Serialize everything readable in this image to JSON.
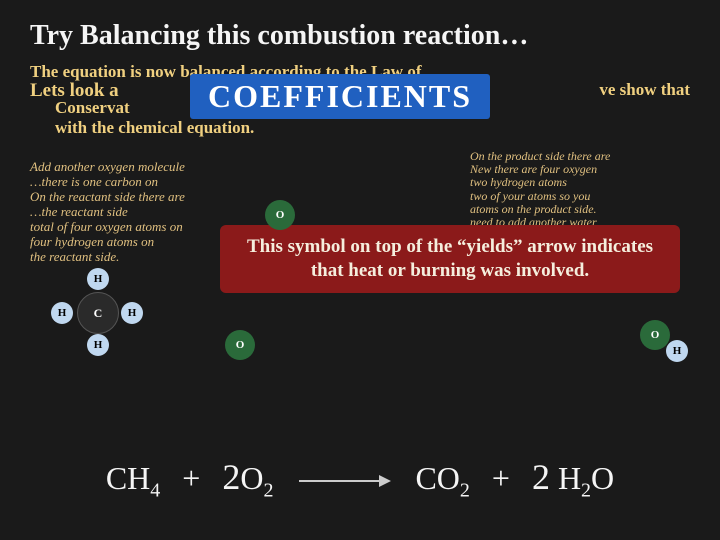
{
  "title": "Try Balancing this combustion reaction…",
  "overlay": {
    "law_line": "The equation is now balanced according to the Law of",
    "lets_look": "Lets look a",
    "conservation": "Conservat",
    "show_that": "ve show that",
    "with_chem": "with the chemical equation.",
    "coeff_label": "COEFFICIENTS"
  },
  "left_para": "Add another oxygen molecule<br>…there is one carbon on<br>On the reactant side there are<br>…the reactant side<br>total of four oxygen atoms on<br>four hydrogen atoms on<br>the reactant side.",
  "right_para": "On the product side there are<br>New there are four oxygen<br>two hydrogen atoms<br>two of your atoms so you<br>atoms on the product side.<br>need to add another water<br>molecule",
  "red_box": "This symbol on top of the “yields” arrow indicates that heat or burning was involved.",
  "atoms": {
    "H": "H",
    "C": "C",
    "O": "O"
  },
  "equation": {
    "ch4": "CH",
    "ch4_sub": "4",
    "plus": "+",
    "coef2a": "2",
    "o2": "O",
    "o2_sub": "2",
    "co2": "CO",
    "co2_sub": "2",
    "coef2b": "2",
    "h2o_h": "H",
    "h2o_sub": "2",
    "h2o_o": "O"
  },
  "colors": {
    "bg": "#1a1a1a",
    "title": "#f5f5f5",
    "gold": "#f0d080",
    "coeff_bg": "#2060c0",
    "red_box_bg": "#8b1a1a",
    "atom_c": "#2a2a2a",
    "atom_h": "#c0d8f0",
    "atom_o": "#2a6a3a"
  }
}
